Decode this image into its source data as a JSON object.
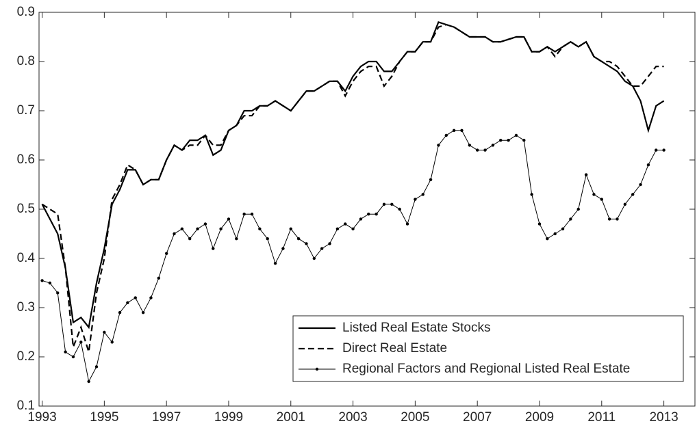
{
  "chart_data": {
    "type": "line",
    "x": [
      1993,
      1993.25,
      1993.5,
      1993.75,
      1994,
      1994.25,
      1994.5,
      1994.75,
      1995,
      1995.25,
      1995.5,
      1995.75,
      1996,
      1996.25,
      1996.5,
      1996.75,
      1997,
      1997.25,
      1997.5,
      1997.75,
      1998,
      1998.25,
      1998.5,
      1998.75,
      1999,
      1999.25,
      1999.5,
      1999.75,
      2000,
      2000.25,
      2000.5,
      2000.75,
      2001,
      2001.25,
      2001.5,
      2001.75,
      2002,
      2002.25,
      2002.5,
      2002.75,
      2003,
      2003.25,
      2003.5,
      2003.75,
      2004,
      2004.25,
      2004.5,
      2004.75,
      2005,
      2005.25,
      2005.5,
      2005.75,
      2006,
      2006.25,
      2006.5,
      2006.75,
      2007,
      2007.25,
      2007.5,
      2007.75,
      2008,
      2008.25,
      2008.5,
      2008.75,
      2009,
      2009.25,
      2009.5,
      2009.75,
      2010,
      2010.25,
      2010.5,
      2010.75,
      2011,
      2011.25,
      2011.5,
      2011.75,
      2012,
      2012.25,
      2012.5,
      2012.75,
      2013
    ],
    "series": [
      {
        "name": "Listed Real Estate Stocks",
        "color": "#000000",
        "style": "solid",
        "values": [
          0.51,
          0.48,
          0.45,
          0.38,
          0.27,
          0.28,
          0.26,
          0.35,
          0.42,
          0.51,
          0.54,
          0.58,
          0.58,
          0.55,
          0.56,
          0.56,
          0.6,
          0.63,
          0.62,
          0.64,
          0.64,
          0.65,
          0.61,
          0.62,
          0.66,
          0.67,
          0.7,
          0.7,
          0.71,
          0.71,
          0.72,
          0.71,
          0.7,
          0.72,
          0.74,
          0.74,
          0.75,
          0.76,
          0.76,
          0.74,
          0.77,
          0.79,
          0.8,
          0.8,
          0.78,
          0.78,
          0.8,
          0.82,
          0.82,
          0.84,
          0.84,
          0.88,
          0.875,
          0.87,
          0.86,
          0.85,
          0.85,
          0.85,
          0.84,
          0.84,
          0.845,
          0.85,
          0.85,
          0.82,
          0.82,
          0.83,
          0.82,
          0.83,
          0.84,
          0.83,
          0.84,
          0.81,
          0.8,
          0.79,
          0.78,
          0.76,
          0.75,
          0.72,
          0.66,
          0.71,
          0.72
        ]
      },
      {
        "name": "Direct Real Estate",
        "color": "#000000",
        "style": "dashed",
        "values": [
          0.51,
          0.5,
          0.49,
          0.38,
          0.22,
          0.26,
          0.21,
          0.33,
          0.4,
          0.52,
          0.55,
          0.59,
          0.58,
          0.55,
          0.56,
          0.56,
          0.6,
          0.63,
          0.62,
          0.63,
          0.63,
          0.65,
          0.63,
          0.63,
          0.66,
          0.67,
          0.69,
          0.69,
          0.71,
          0.71,
          0.72,
          0.71,
          0.7,
          0.72,
          0.74,
          0.74,
          0.75,
          0.76,
          0.76,
          0.73,
          0.76,
          0.78,
          0.79,
          0.79,
          0.75,
          0.77,
          0.8,
          0.82,
          0.82,
          0.84,
          0.84,
          0.87,
          0.875,
          0.87,
          0.86,
          0.85,
          0.85,
          0.85,
          0.84,
          0.84,
          0.845,
          0.85,
          0.85,
          0.82,
          0.82,
          0.83,
          0.81,
          0.83,
          0.84,
          0.83,
          0.84,
          0.81,
          0.8,
          0.8,
          0.79,
          0.77,
          0.75,
          0.75,
          0.77,
          0.79,
          0.79
        ]
      },
      {
        "name": "Regional Factors and Regional Listed Real Estate",
        "color": "#000000",
        "style": "marker",
        "values": [
          0.355,
          0.35,
          0.33,
          0.21,
          0.2,
          0.23,
          0.15,
          0.18,
          0.25,
          0.23,
          0.29,
          0.31,
          0.32,
          0.29,
          0.32,
          0.36,
          0.41,
          0.45,
          0.46,
          0.44,
          0.46,
          0.47,
          0.42,
          0.46,
          0.48,
          0.44,
          0.49,
          0.49,
          0.46,
          0.44,
          0.39,
          0.42,
          0.46,
          0.44,
          0.43,
          0.4,
          0.42,
          0.43,
          0.46,
          0.47,
          0.46,
          0.48,
          0.49,
          0.49,
          0.51,
          0.51,
          0.5,
          0.47,
          0.52,
          0.53,
          0.56,
          0.63,
          0.65,
          0.66,
          0.66,
          0.63,
          0.62,
          0.62,
          0.63,
          0.64,
          0.64,
          0.65,
          0.64,
          0.53,
          0.47,
          0.44,
          0.45,
          0.46,
          0.48,
          0.5,
          0.57,
          0.53,
          0.52,
          0.48,
          0.48,
          0.51,
          0.53,
          0.55,
          0.59,
          0.62,
          0.62
        ]
      }
    ],
    "xlim": [
      1992.9,
      2014
    ],
    "xticks": [
      1993,
      1995,
      1997,
      1999,
      2001,
      2003,
      2005,
      2007,
      2009,
      2011,
      2013
    ],
    "ylim": [
      0.1,
      0.9
    ],
    "yticks": [
      0.1,
      0.2,
      0.3,
      0.4,
      0.5,
      0.6,
      0.7,
      0.8,
      0.9
    ],
    "legend": "lower right"
  }
}
